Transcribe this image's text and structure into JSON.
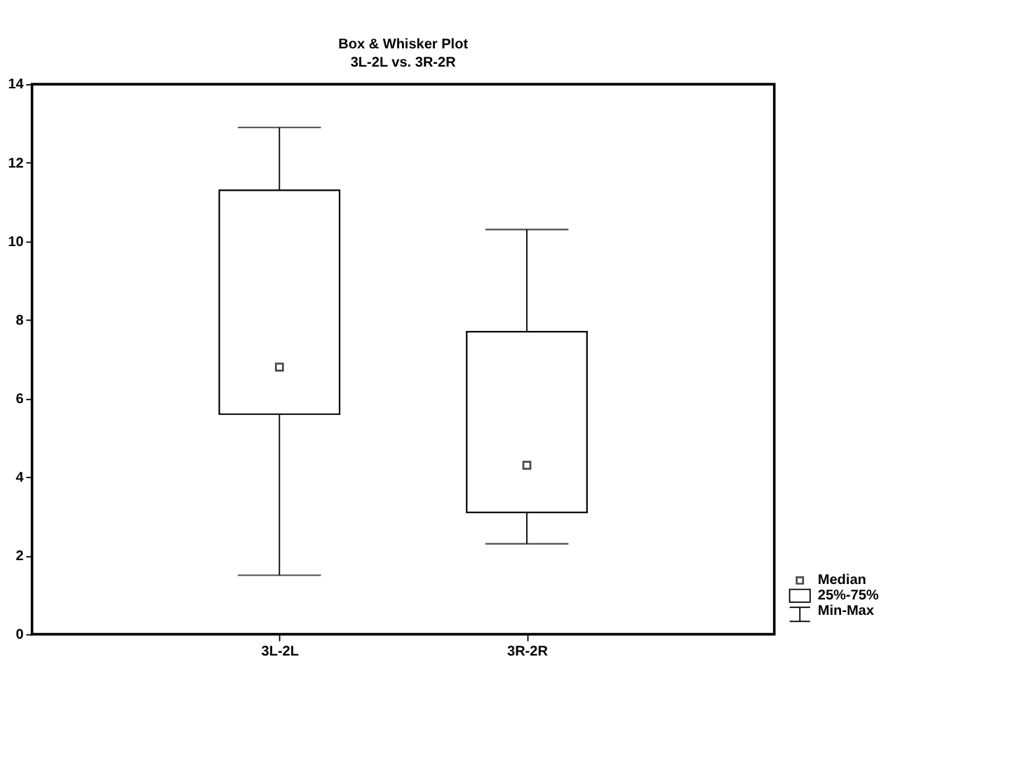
{
  "chart_data": {
    "type": "box",
    "title": "Box & Whisker Plot",
    "subtitle": "3L-2L vs. 3R-2R",
    "categories": [
      "3L-2L",
      "3R-2R"
    ],
    "boxes": [
      {
        "low": 1.5,
        "q1": 5.6,
        "median": 6.8,
        "q3": 11.3,
        "high": 12.9
      },
      {
        "low": 2.3,
        "q1": 3.1,
        "median": 4.3,
        "q3": 7.7,
        "high": 10.3
      }
    ],
    "ylim": [
      0,
      14
    ],
    "yticks": [
      0,
      2,
      4,
      6,
      8,
      10,
      12,
      14
    ],
    "grid": false,
    "marker": "square",
    "annotations": [
      "Median",
      "25%-75%",
      "Min-Max"
    ]
  }
}
